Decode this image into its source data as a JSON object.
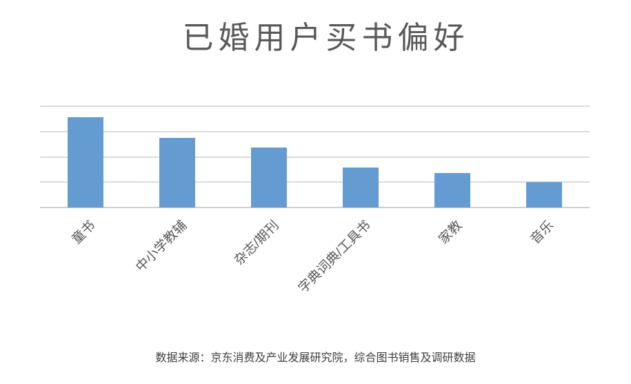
{
  "title": "已婚用户买书偏好",
  "footer": "数据来源：京东消费及产业发展研究院，综合图书销售及调研数据",
  "colors": {
    "background": "#FFFFFF",
    "bar": "#649CD2",
    "gridline": "#DCDCDC",
    "axis_line": "#CFCFCF",
    "title_text": "#595959",
    "category_label_text": "#595959",
    "footer_text": "#3D3D3D"
  },
  "chart_data": {
    "type": "bar",
    "title": "已婚用户买书偏好",
    "categories": [
      "童书",
      "中小学教辅",
      "杂志/期刊",
      "字典词典/工具书",
      "家教",
      "音乐"
    ],
    "values": [
      35.6,
      27.5,
      23.7,
      15.8,
      13.6,
      10.1
    ],
    "xlabel": "",
    "ylabel": "",
    "ylim": [
      0,
      40
    ],
    "gridline_interval": 10,
    "grid": true,
    "y_tick_labels_visible": false,
    "legend_position": "none",
    "bar_color": "#649CD2",
    "category_label_rotation_deg": 45,
    "annotation": "数据来源：京东消费及产业发展研究院，综合图书销售及调研数据"
  }
}
